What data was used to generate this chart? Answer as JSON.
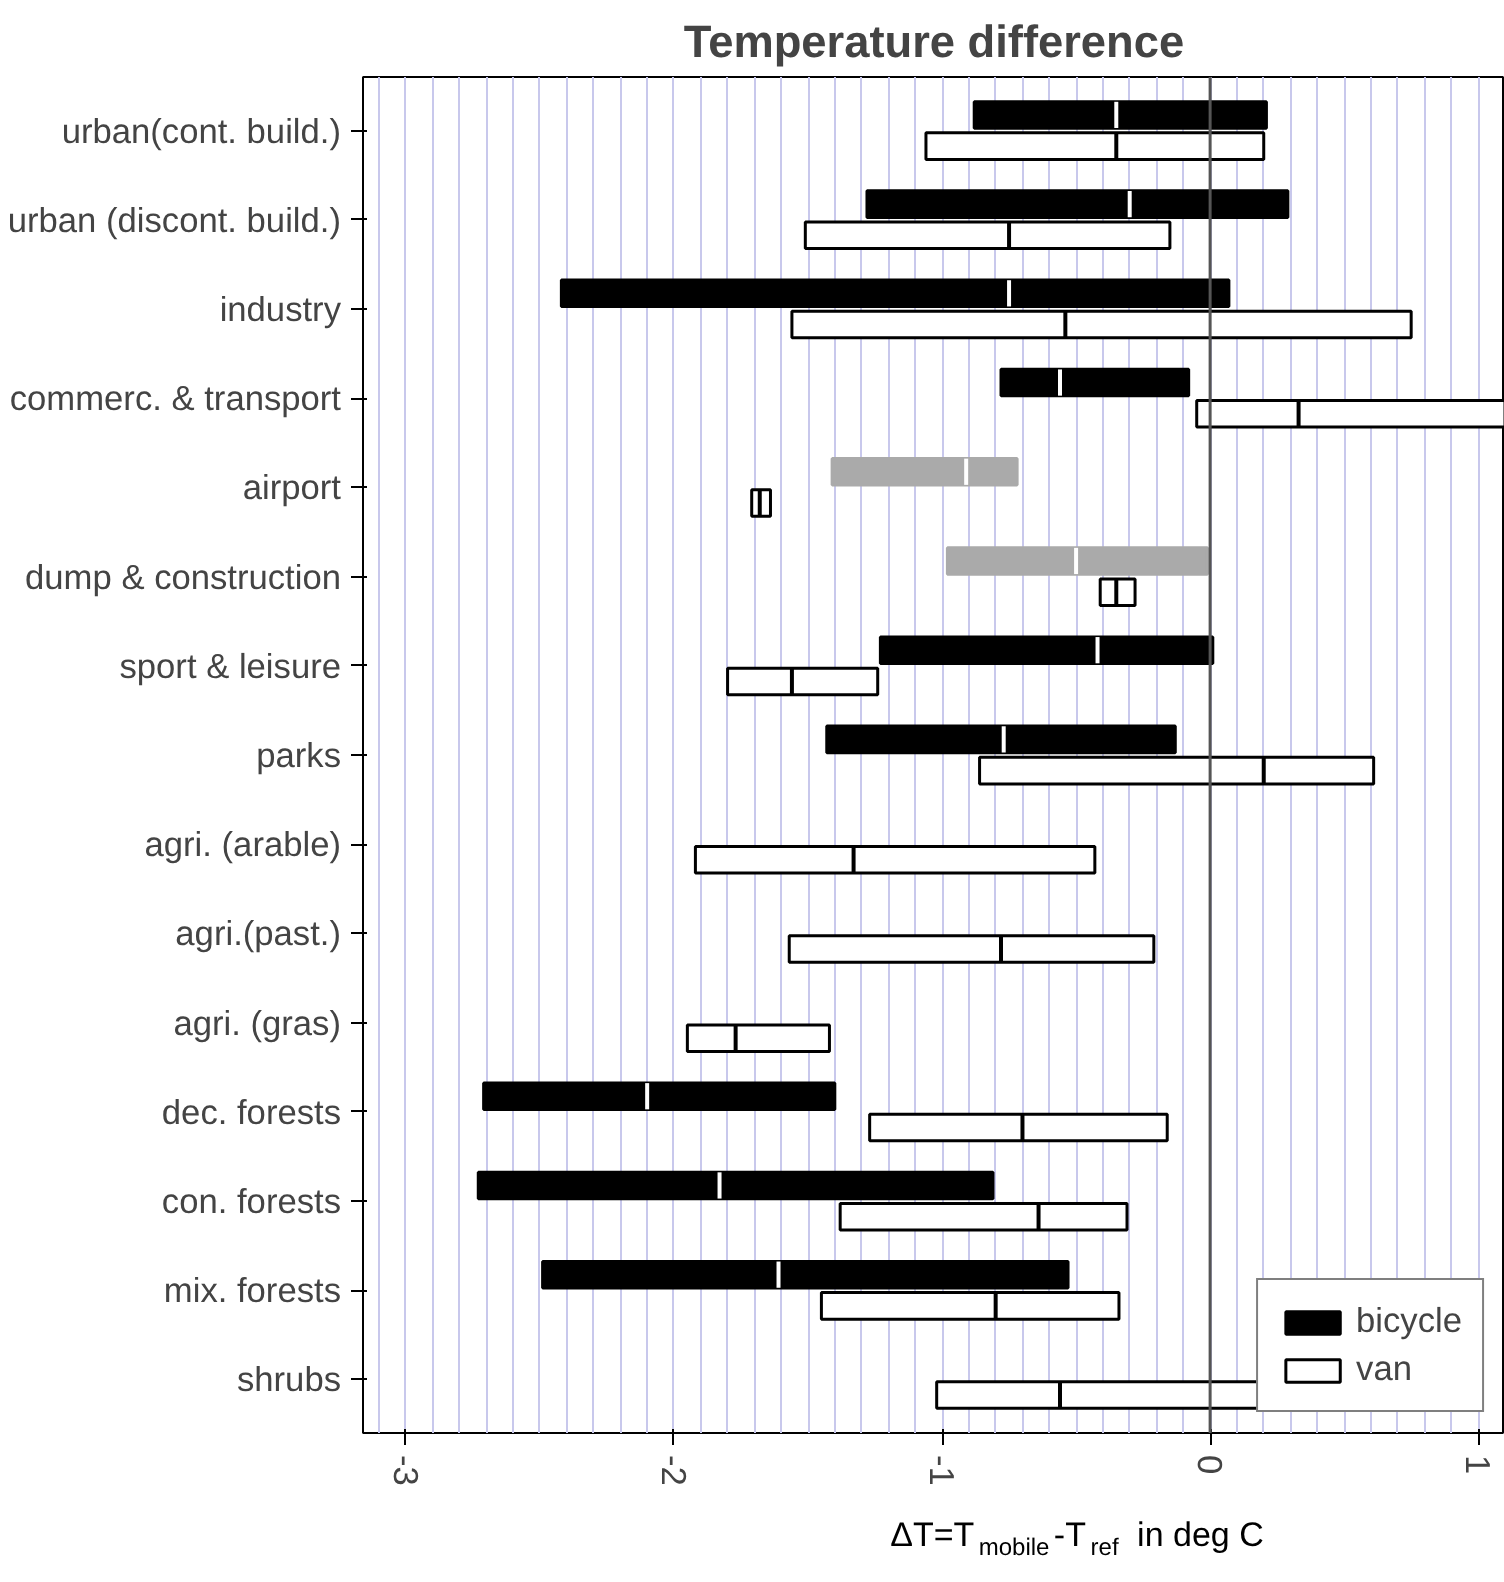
{
  "chart_data": {
    "type": "box",
    "orientation": "horizontal",
    "title": "Temperature difference",
    "xlabel": "ΔT=T$_{mobile}$-T$_{ref}$ in deg C",
    "categories": [
      "urban(cont. build.)",
      "urban (discont. build.)",
      "industry",
      "commerc. & transport",
      "airport",
      "dump & construction",
      "sport & leisure",
      "parks",
      "agri. (arable)",
      "agri.(past.)",
      "agri. (gras)",
      "dec. forests",
      "con. forests",
      "mix. forests",
      "shrubs"
    ],
    "xlim": [
      -3.16,
      1.1
    ],
    "xticks": [
      -3,
      -2,
      -1,
      0,
      1
    ],
    "grid": "x",
    "legend": "bottom right",
    "ref_lines": [
      {
        "axis": "x",
        "value": 0,
        "label": null,
        "color": "#555555"
      }
    ],
    "series": [
      {
        "name": "bicycle",
        "color": "#000000",
        "colors": [
          "#000000",
          "#000000",
          "#000000",
          "#000000",
          "#aaaaaa",
          "#aaaaaa",
          "#000000",
          "#000000",
          null,
          null,
          null,
          "#000000",
          "#000000",
          "#000000",
          null
        ],
        "boxes": [
          {
            "low": -0.88,
            "q1": -0.88,
            "median": -0.35,
            "q3": 0.21,
            "high": 0.21
          },
          {
            "low": -1.28,
            "q1": -1.28,
            "median": -0.3,
            "q3": 0.29,
            "high": 0.29
          },
          {
            "low": -2.42,
            "q1": -2.42,
            "median": -0.75,
            "q3": 0.07,
            "high": 0.07
          },
          {
            "low": -0.78,
            "q1": -0.78,
            "median": -0.56,
            "q3": -0.08,
            "high": -0.08
          },
          {
            "low": -1.41,
            "q1": -1.41,
            "median": -0.91,
            "q3": -0.72,
            "high": -0.72
          },
          {
            "low": -0.98,
            "q1": -0.98,
            "median": -0.5,
            "q3": -0.01,
            "high": -0.01
          },
          {
            "low": -1.23,
            "q1": -1.23,
            "median": -0.42,
            "q3": 0.01,
            "high": 0.01
          },
          {
            "low": -1.43,
            "q1": -1.43,
            "median": -0.77,
            "q3": -0.13,
            "high": -0.13
          },
          null,
          null,
          null,
          {
            "low": -2.71,
            "q1": -2.71,
            "median": -2.1,
            "q3": -1.4,
            "high": -1.4
          },
          {
            "low": -2.73,
            "q1": -2.73,
            "median": -1.83,
            "q3": -0.81,
            "high": -0.81
          },
          {
            "low": -2.49,
            "q1": -2.49,
            "median": -1.61,
            "q3": -0.53,
            "high": -0.53
          },
          null
        ]
      },
      {
        "name": "van",
        "color": "#ffffff",
        "boxes": [
          {
            "low": -1.06,
            "q1": -1.06,
            "median": -0.35,
            "q3": 0.2,
            "high": 0.2
          },
          {
            "low": -1.51,
            "q1": -1.51,
            "median": -0.75,
            "q3": -0.15,
            "high": -0.15
          },
          {
            "low": -1.56,
            "q1": -1.56,
            "median": -0.54,
            "q3": 0.75,
            "high": 0.75
          },
          {
            "low": -0.05,
            "q1": -0.05,
            "median": 0.33,
            "q3": 1.1,
            "high": 1.1
          },
          {
            "low": -1.71,
            "q1": -1.71,
            "median": -1.68,
            "q3": -1.64,
            "high": -1.64
          },
          {
            "low": -0.41,
            "q1": -0.41,
            "median": -0.35,
            "q3": -0.28,
            "high": -0.28
          },
          {
            "low": -1.8,
            "q1": -1.8,
            "median": -1.56,
            "q3": -1.24,
            "high": -1.24
          },
          {
            "low": -0.86,
            "q1": -0.86,
            "median": 0.2,
            "q3": 0.61,
            "high": 0.61
          },
          {
            "low": -1.92,
            "q1": -1.92,
            "median": -1.33,
            "q3": -0.43,
            "high": -0.43
          },
          {
            "low": -1.57,
            "q1": -1.57,
            "median": -0.78,
            "q3": -0.21,
            "high": -0.21
          },
          {
            "low": -1.95,
            "q1": -1.95,
            "median": -1.77,
            "q3": -1.42,
            "high": -1.42
          },
          {
            "low": -1.27,
            "q1": -1.27,
            "median": -0.7,
            "q3": -0.16,
            "high": -0.16
          },
          {
            "low": -1.38,
            "q1": -1.38,
            "median": -0.64,
            "q3": -0.31,
            "high": -0.31
          },
          {
            "low": -1.45,
            "q1": -1.45,
            "median": -0.8,
            "q3": -0.34,
            "high": -0.34
          },
          {
            "low": -1.02,
            "q1": -1.02,
            "median": -0.56,
            "q3": 0.22,
            "high": 0.22
          }
        ]
      }
    ]
  }
}
